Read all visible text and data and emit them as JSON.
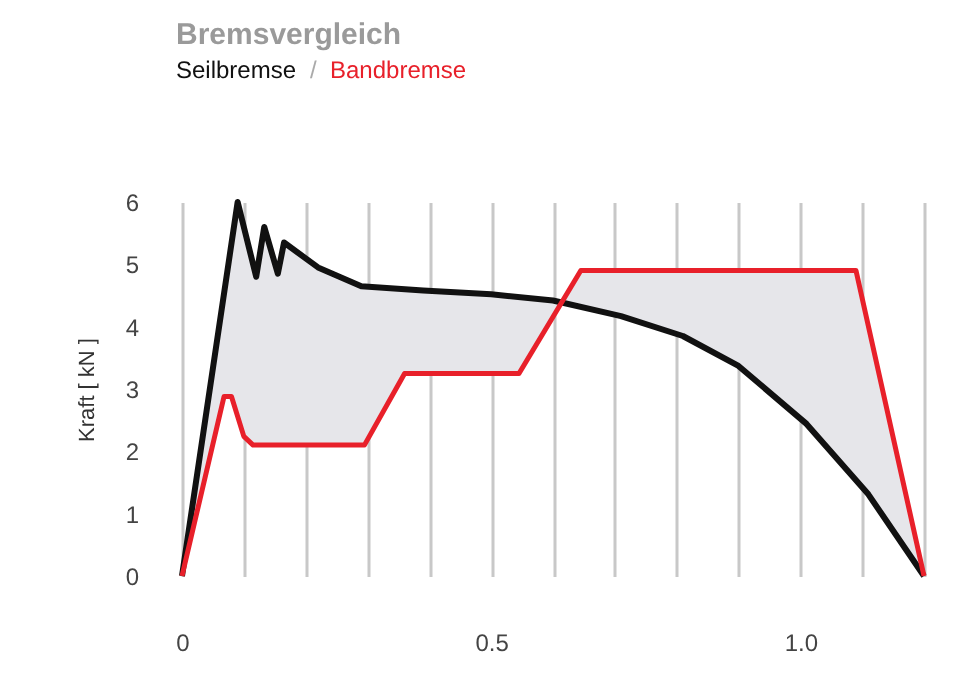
{
  "chart_data": {
    "type": "line",
    "title": "Bremsvergleich",
    "ylabel": "Kraft [ kN ]",
    "series": [
      {
        "name": "Seilbremse",
        "color": "#111111",
        "x": [
          0,
          0.09,
          0.12,
          0.133,
          0.155,
          0.165,
          0.22,
          0.29,
          0.39,
          0.5,
          0.6,
          0.71,
          0.81,
          0.9,
          1.01,
          1.11,
          1.2
        ],
        "values": [
          0,
          6.0,
          4.8,
          5.6,
          4.85,
          5.35,
          4.95,
          4.65,
          4.58,
          4.52,
          4.42,
          4.17,
          3.85,
          3.37,
          2.44,
          1.31,
          0
        ]
      },
      {
        "name": "Bandbremse",
        "color": "#e8202a",
        "x": [
          0,
          0.068,
          0.08,
          0.1,
          0.115,
          0.295,
          0.36,
          0.545,
          0.645,
          1.09,
          1.2
        ],
        "values": [
          0,
          2.88,
          2.88,
          2.24,
          2.1,
          2.1,
          3.25,
          3.25,
          4.9,
          4.9,
          0
        ]
      }
    ],
    "xlim": [
      0,
      1.2
    ],
    "ylim": [
      0,
      6
    ],
    "xticks": [
      0,
      {
        "value": 0.1,
        "label": null
      },
      {
        "value": 0.2,
        "label": null
      },
      {
        "value": 0.3,
        "label": null
      },
      {
        "value": 0.4,
        "label": null
      },
      0.5,
      {
        "value": 0.6,
        "label": null
      },
      {
        "value": 0.7,
        "label": null
      },
      {
        "value": 0.8,
        "label": null
      },
      {
        "value": 0.9,
        "label": null
      },
      {
        "value": 1,
        "label": "1.0"
      },
      {
        "value": 1.1,
        "label": null
      },
      {
        "value": 1.2,
        "label": null
      }
    ],
    "yticks": [
      0,
      1,
      2,
      3,
      4,
      5,
      6
    ],
    "annotations": [
      "/"
    ],
    "grid": "x",
    "legend": "top left",
    "marker": "none",
    "line_style": "solid"
  }
}
